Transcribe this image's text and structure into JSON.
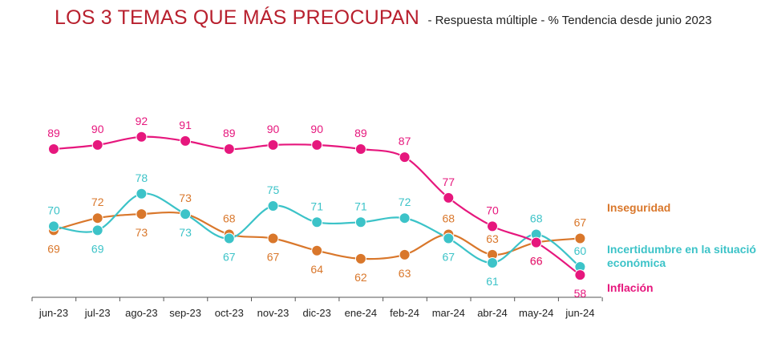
{
  "title": "LOS 3 TEMAS QUE MÁS PREOCUPAN",
  "subtitle": "- Respuesta múltiple - % Tendencia desde junio 2023",
  "colors": {
    "inflacion": "#e6177d",
    "inseguridad": "#d9772b",
    "incertidumbre": "#3cc3c8",
    "axis": "#555555"
  },
  "chart_data": {
    "type": "line",
    "categories": [
      "jun-23",
      "jul-23",
      "ago-23",
      "sep-23",
      "oct-23",
      "nov-23",
      "dic-23",
      "ene-24",
      "feb-24",
      "mar-24",
      "abr-24",
      "may-24",
      "jun-24"
    ],
    "series": [
      {
        "name": "Inflación",
        "values": [
          89,
          90,
          92,
          91,
          89,
          90,
          90,
          89,
          87,
          77,
          70,
          66,
          58
        ]
      },
      {
        "name": "Inseguridad",
        "values": [
          69,
          72,
          73,
          73,
          68,
          67,
          64,
          62,
          63,
          68,
          63,
          66,
          67
        ]
      },
      {
        "name": "Incertidumbre en la situación económica",
        "values": [
          70,
          69,
          78,
          73,
          67,
          75,
          71,
          71,
          72,
          67,
          61,
          68,
          60
        ]
      }
    ],
    "grid": false,
    "legend": "right"
  }
}
